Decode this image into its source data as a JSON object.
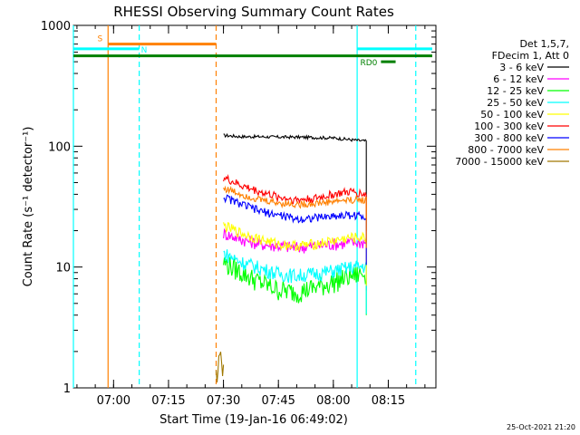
{
  "chart_data": {
    "type": "line",
    "title": "RHESSI Observing Summary Count Rates",
    "xlabel": "Start Time (19-Jan-16 06:49:02)",
    "ylabel": "Count Rate (s⁻¹ detector⁻¹)",
    "yscale": "log",
    "ylim": [
      1,
      1000
    ],
    "xlim": [
      "06:49:02",
      "08:28:00"
    ],
    "x_ticks": [
      "07:00",
      "07:15",
      "07:30",
      "07:45",
      "08:00",
      "08:15"
    ],
    "y_ticks": [
      "1",
      "10",
      "100",
      "1000"
    ],
    "grid": false,
    "legend_position": "right",
    "legend_header": [
      "Det 1,5,7,",
      "FDecim 1, Att 0"
    ],
    "timestamp": "25-Oct-2021 21:20",
    "series": [
      {
        "name": "3 - 6 keV",
        "color": "#000000",
        "x": [
          "07:30",
          "07:35",
          "07:40",
          "07:45",
          "07:50",
          "07:55",
          "08:00",
          "08:05",
          "08:09"
        ],
        "values": [
          123,
          120,
          120,
          119,
          119,
          118,
          117,
          113,
          110
        ]
      },
      {
        "name": "6 - 12 keV",
        "color": "#ff00ff",
        "x": [
          "07:30",
          "07:35",
          "07:40",
          "07:45",
          "07:50",
          "07:55",
          "08:00",
          "08:05",
          "08:09"
        ],
        "values": [
          19,
          17,
          15.5,
          15,
          14.5,
          15,
          15.5,
          16,
          16
        ]
      },
      {
        "name": "12 - 25 keV",
        "color": "#00ff00",
        "x": [
          "07:30",
          "07:35",
          "07:40",
          "07:45",
          "07:50",
          "07:55",
          "08:00",
          "08:05",
          "08:09"
        ],
        "values": [
          11,
          9,
          7.5,
          6.5,
          6.2,
          6.8,
          7.5,
          8.5,
          9
        ]
      },
      {
        "name": "25 - 50 keV",
        "color": "#00ffff",
        "x": [
          "07:30",
          "07:35",
          "07:40",
          "07:45",
          "07:50",
          "07:55",
          "08:00",
          "08:05",
          "08:09"
        ],
        "values": [
          13,
          11,
          9.8,
          8.8,
          8.5,
          8.8,
          9.3,
          10,
          10.2
        ]
      },
      {
        "name": "50 - 100 keV",
        "color": "#ffff00",
        "x": [
          "07:30",
          "07:35",
          "07:40",
          "07:45",
          "07:50",
          "07:55",
          "08:00",
          "08:05",
          "08:09"
        ],
        "values": [
          22,
          19,
          17,
          15.5,
          15,
          15.5,
          16.5,
          17.5,
          17.5
        ]
      },
      {
        "name": "100 - 300 keV",
        "color": "#ff0000",
        "x": [
          "07:30",
          "07:35",
          "07:40",
          "07:45",
          "07:50",
          "07:55",
          "08:00",
          "08:05",
          "08:09"
        ],
        "values": [
          55,
          47,
          42,
          38,
          36,
          37,
          40,
          42,
          40
        ]
      },
      {
        "name": "300 - 800 keV",
        "color": "#0000ff",
        "x": [
          "07:30",
          "07:35",
          "07:40",
          "07:45",
          "07:50",
          "07:55",
          "08:00",
          "08:05",
          "08:09"
        ],
        "values": [
          38,
          33,
          29,
          27,
          25,
          25.5,
          26.5,
          27,
          26
        ]
      },
      {
        "name": "800 - 7000 keV",
        "color": "#ff8000",
        "x": [
          "07:30",
          "07:35",
          "07:40",
          "07:45",
          "07:50",
          "07:55",
          "08:00",
          "08:05",
          "08:09"
        ],
        "values": [
          45,
          40,
          36,
          34,
          33,
          33.5,
          35,
          36,
          36
        ]
      },
      {
        "name": "7000 - 15000 keV",
        "color": "#a07800",
        "x": [
          "07:28",
          "07:29",
          "07:30"
        ],
        "values": [
          1.2,
          1.8,
          1.3
        ]
      }
    ],
    "annotations": {
      "flag_bars": [
        {
          "label": "S",
          "color": "#ff8000",
          "start": "06:58:30",
          "end": "07:28:00",
          "y": 700
        },
        {
          "label": "N",
          "color": "#00ffff",
          "start": "06:49:02",
          "end": "07:07:00",
          "y": 640
        },
        {
          "label": "",
          "color": "#00ffff",
          "start": "08:06:30",
          "end": "08:27:00",
          "y": 640
        },
        {
          "label": "",
          "color": "#008000",
          "start": "06:49:02",
          "end": "08:27:00",
          "y": 560
        },
        {
          "label": "RD0",
          "color": "#008000",
          "start": "08:13:00",
          "end": "08:17:00",
          "y": 500
        }
      ],
      "vertical_lines": [
        {
          "time": "06:49:02",
          "color": "#00ffff",
          "style": "solid"
        },
        {
          "time": "06:58:30",
          "color": "#ff8000",
          "style": "solid"
        },
        {
          "time": "07:07:00",
          "color": "#00ffff",
          "style": "dashed"
        },
        {
          "time": "07:28:00",
          "color": "#ff8000",
          "style": "dashed"
        },
        {
          "time": "08:06:30",
          "color": "#00ffff",
          "style": "solid"
        },
        {
          "time": "08:22:30",
          "color": "#00ffff",
          "style": "dashed"
        }
      ]
    }
  }
}
